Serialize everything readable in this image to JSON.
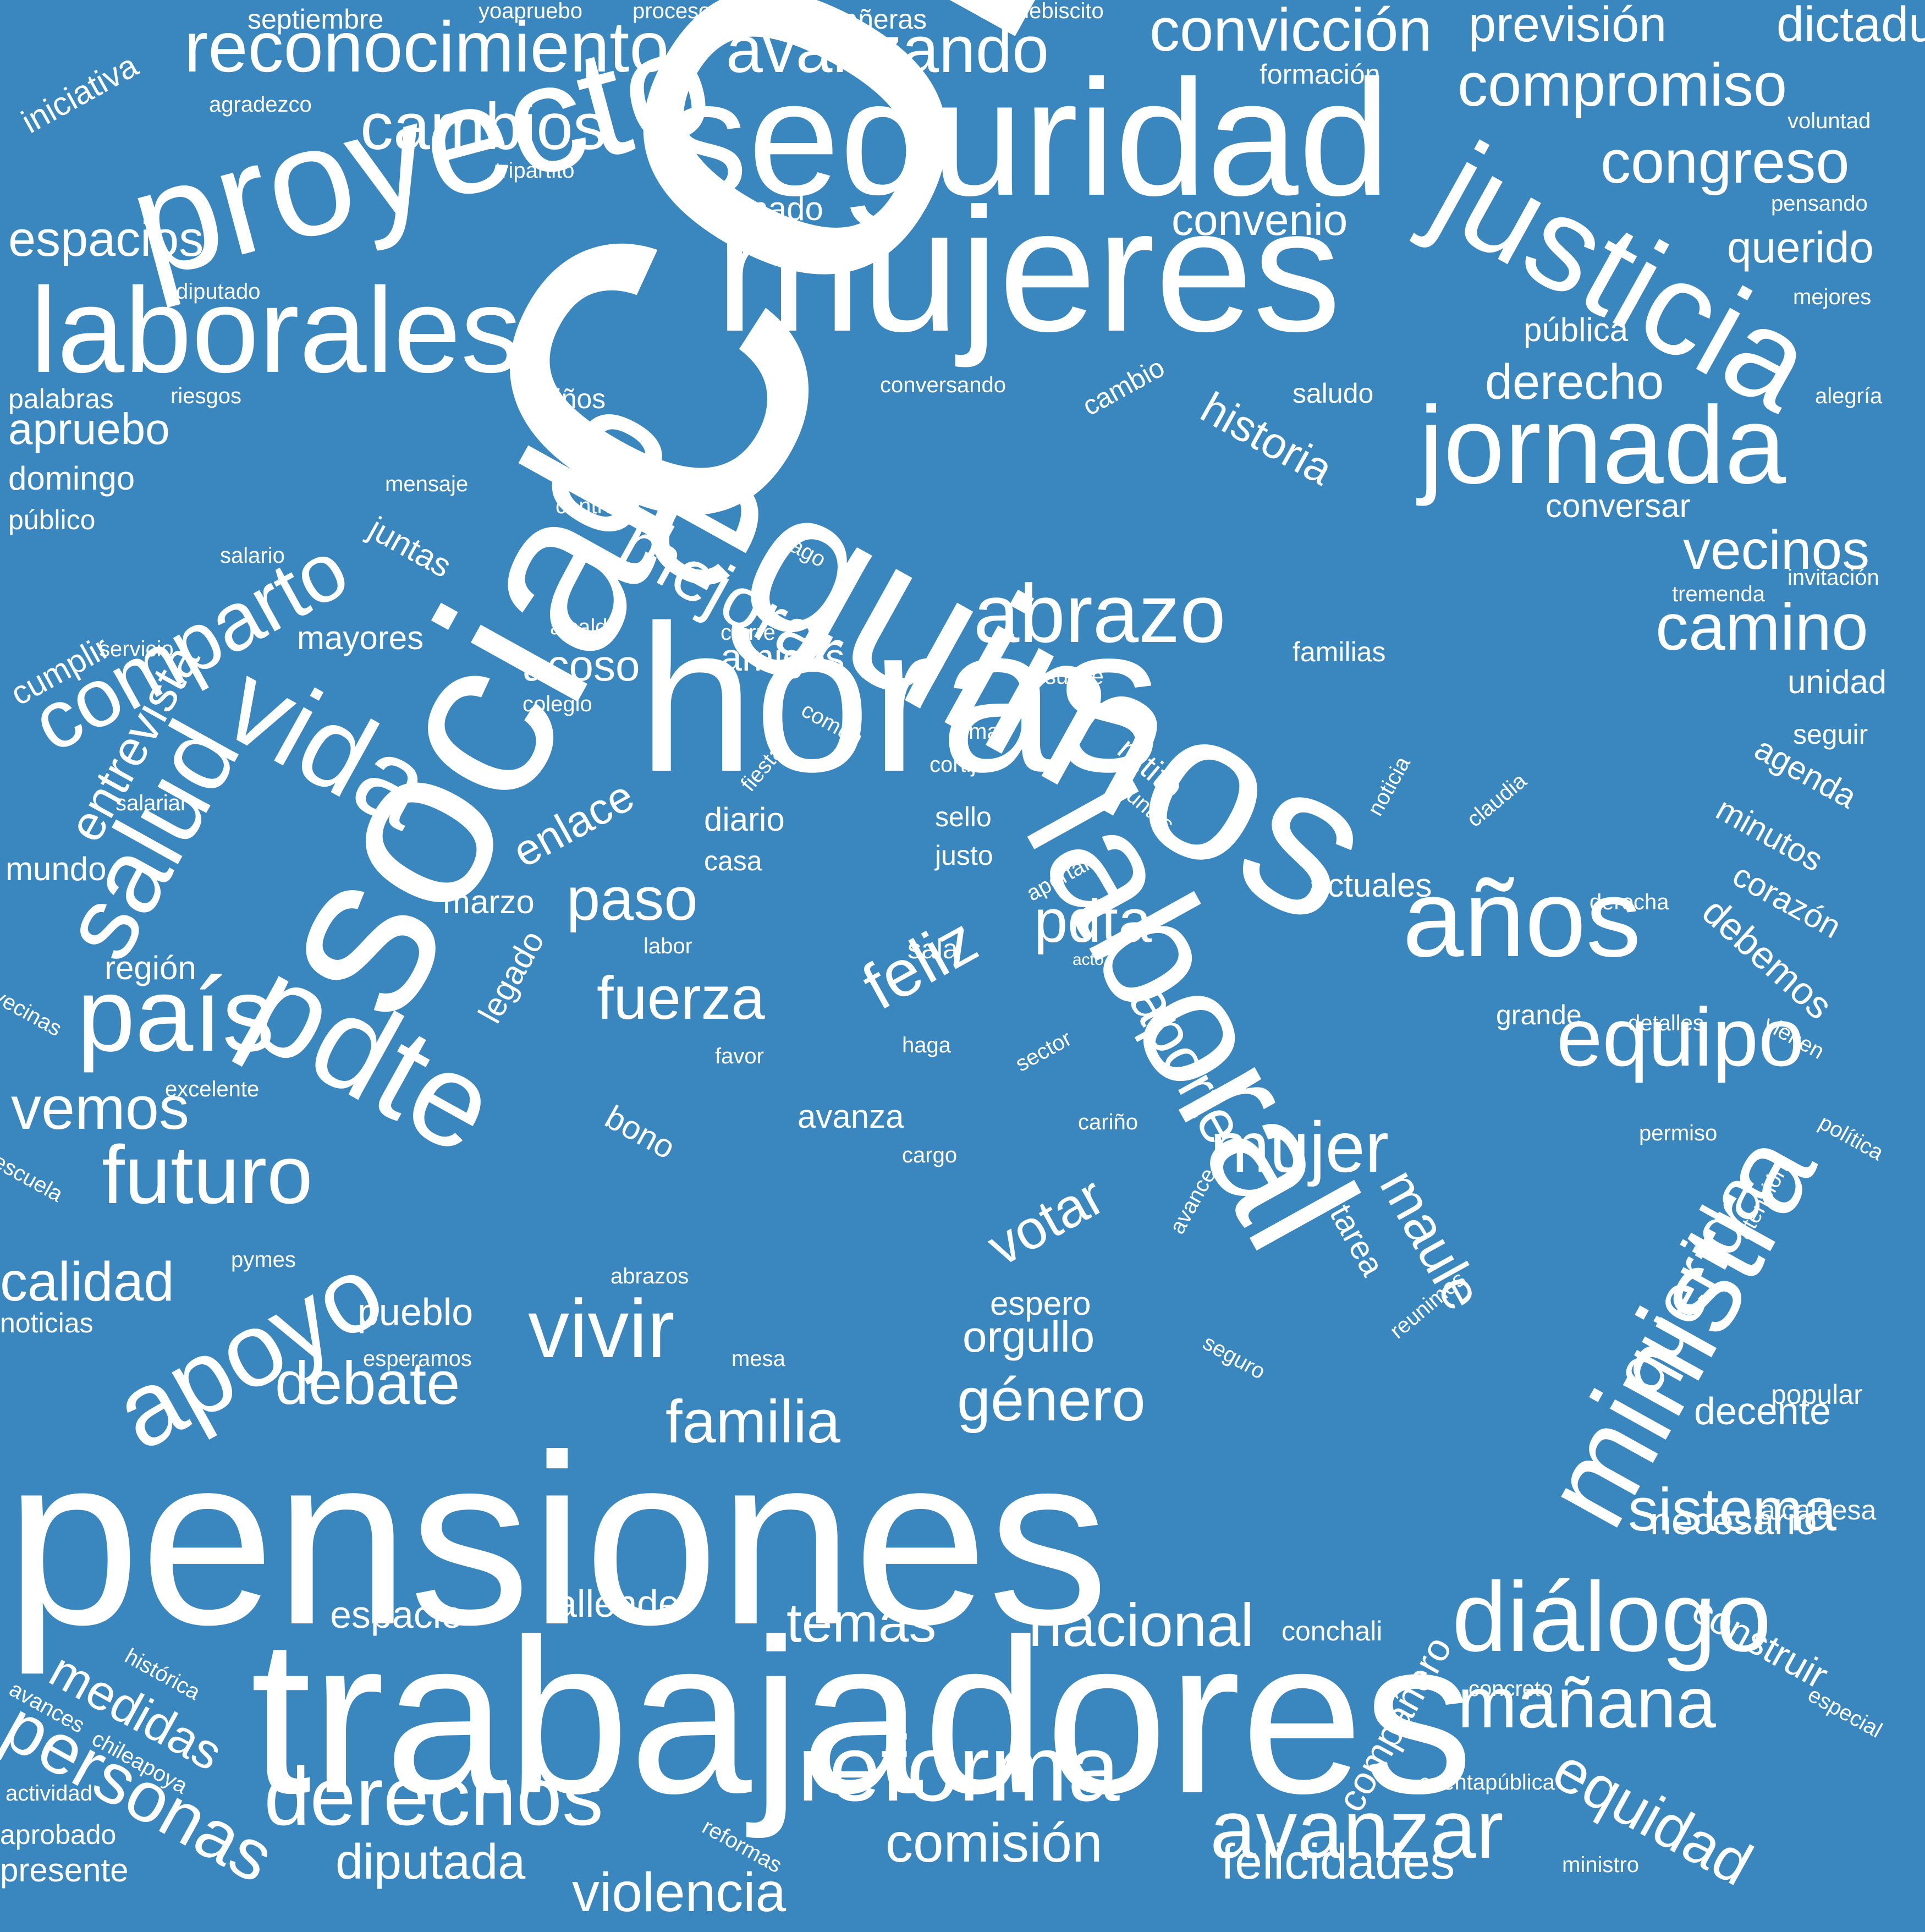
{
  "cloud": {
    "background_color": "#3a86be",
    "text_color": "#ffffff",
    "words": [
      "conchalí",
      "pensiones",
      "trabajadores",
      "social",
      "horas",
      "seguimos",
      "mujeres",
      "seguridad",
      "proyecto",
      "laboral",
      "justicia",
      "laborales",
      "pdte",
      "ministra",
      "jornada",
      "años",
      "vida",
      "salud",
      "apoyo",
      "país",
      "diálogo",
      "reforma",
      "derechos",
      "avanzar",
      "equipo",
      "abrazo",
      "comparto",
      "mejorar",
      "vivir",
      "futuro",
      "querida",
      "camino",
      "mujer",
      "reconocimiento",
      "avanzando",
      "cambios",
      "compromiso",
      "congreso",
      "convicción",
      "previsión",
      "dictadura",
      "mañana",
      "sistema",
      "equidad",
      "personas",
      "vecinos",
      "debate",
      "familia",
      "género",
      "feliz",
      "fuerza",
      "paso",
      "pdta",
      "aporte",
      "maule",
      "votar",
      "nacional",
      "temas",
      "comisión",
      "violencia",
      "diputada",
      "felicidades",
      "calidad",
      "vemos",
      "espacios",
      "apruebo",
      "entrevista",
      "historia",
      "derecho",
      "convenio",
      "querido",
      "pública",
      "cumplir",
      "mayores",
      "amigos",
      "acoso",
      "orgullo",
      "espero",
      "pueblo",
      "espacio",
      "allende",
      "decente",
      "necesario",
      "construir",
      "medidas",
      "compañero",
      "enlace",
      "actuales",
      "avanza",
      "tarea",
      "agenda",
      "minutos",
      "corazón",
      "debemos",
      "unidad",
      "seguir",
      "conversar",
      "familias",
      "juntas",
      "senado",
      "diario",
      "casa",
      "marzo",
      "región",
      "grande",
      "noticias",
      "presente",
      "aprobado",
      "domingo",
      "público",
      "palabras",
      "riesgos",
      "cariños",
      "conversando",
      "saludo",
      "alegría",
      "mejores",
      "pensando",
      "voluntad",
      "formación",
      "agradezco",
      "tripartito",
      "diputado",
      "iniciativa",
      "septiembre",
      "yoapruebo",
      "proceso",
      "compañeras",
      "plebiscito",
      "mensaje",
      "centro",
      "pago",
      "salario",
      "servicio",
      "alcalde",
      "colegio",
      "cierre",
      "subse",
      "común",
      "alma",
      "cortijo",
      "ratito",
      "juntos",
      "sello",
      "justo",
      "fiesta",
      "noticia",
      "claudia",
      "aportar",
      "derecha",
      "sala",
      "acto",
      "labor",
      "legado",
      "sector",
      "haga",
      "favor",
      "detalles",
      "excelente",
      "bono",
      "cariño",
      "cargo",
      "permiso",
      "política",
      "vienen",
      "escuela",
      "vecinas",
      "pymes",
      "abrazos",
      "mesa",
      "esperamos",
      "seguro",
      "avance",
      "reunimos",
      "atención",
      "popular",
      "alcaldesa",
      "conchali",
      "concreto",
      "especial",
      "histórica",
      "avances",
      "chileapoya",
      "actividad",
      "reformas",
      "cuentapública",
      "ministro",
      "mundo",
      "salarial",
      "tremenda",
      "invitación",
      "cambio"
    ]
  }
}
